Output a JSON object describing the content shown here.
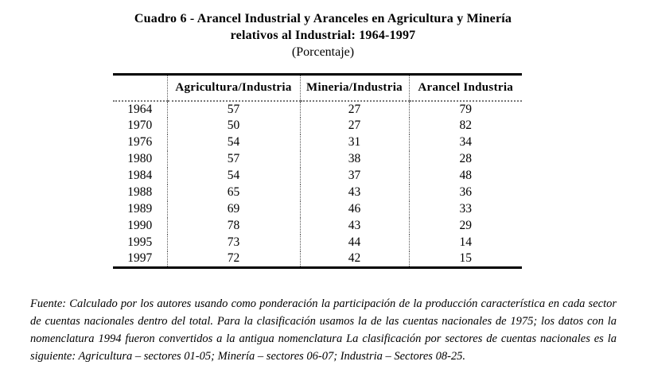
{
  "title": {
    "line1": "Cuadro 6 - Arancel Industrial y Aranceles en Agricultura y Minería",
    "line2": "relativos al Industrial: 1964-1997",
    "subtitle": "(Porcentaje)"
  },
  "table": {
    "columns": [
      "",
      "Agricultura/Industria",
      "Mineria/Industria",
      "Arancel Industria"
    ],
    "rows": [
      {
        "year": "1964",
        "values": [
          "57",
          "27",
          "79"
        ]
      },
      {
        "year": "1970",
        "values": [
          "50",
          "27",
          "82"
        ]
      },
      {
        "year": "1976",
        "values": [
          "54",
          "31",
          "34"
        ]
      },
      {
        "year": "1980",
        "values": [
          "57",
          "38",
          "28"
        ]
      },
      {
        "year": "1984",
        "values": [
          "54",
          "37",
          "48"
        ]
      },
      {
        "year": "1988",
        "values": [
          "65",
          "43",
          "36"
        ]
      },
      {
        "year": "1989",
        "values": [
          "69",
          "46",
          "33"
        ]
      },
      {
        "year": "1990",
        "values": [
          "78",
          "43",
          "29"
        ]
      },
      {
        "year": "1995",
        "values": [
          "73",
          "44",
          "14"
        ]
      },
      {
        "year": "1997",
        "values": [
          "72",
          "42",
          "15"
        ]
      }
    ]
  },
  "footnote": "Fuente: Calculado por los autores usando como ponderación la participación de la producción característica en cada sector de cuentas nacionales dentro del total. Para la clasificación usamos la de las cuentas nacionales de 1975; los datos con la nomenclatura 1994 fueron convertidos a la antigua nomenclatura La clasificación por sectores de cuentas nacionales es la siguiente: Agricultura – sectores 01-05; Minería – sectores 06-07; Industria – Sectores 08-25."
}
